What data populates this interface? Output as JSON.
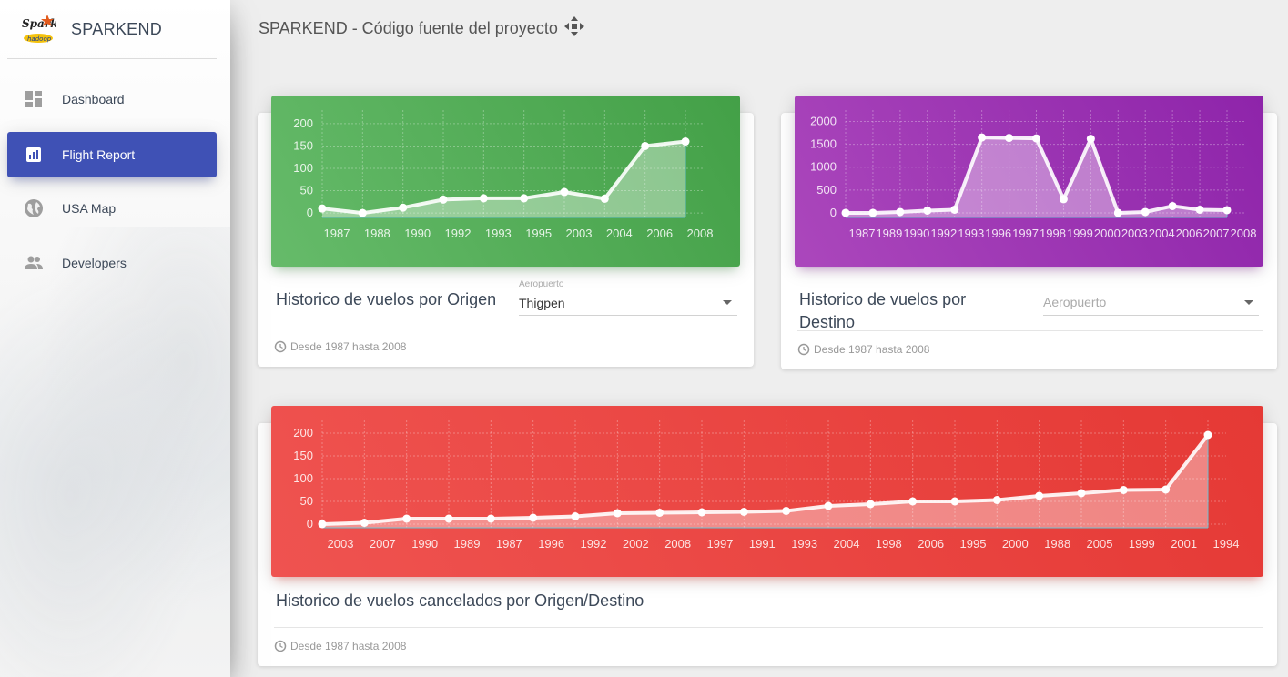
{
  "brand": {
    "title": "SPARKEND",
    "logo_text": "Spark"
  },
  "sidebar": {
    "items": [
      {
        "label": "Dashboard",
        "icon": "dashboard-icon",
        "active": false
      },
      {
        "label": "Flight Report",
        "icon": "bar-chart-icon",
        "active": true
      },
      {
        "label": "USA Map",
        "icon": "globe-icon",
        "active": false
      },
      {
        "label": "Developers",
        "icon": "people-icon",
        "active": false
      }
    ]
  },
  "topbar": {
    "title": "SPARKEND - Código fuente del proyecto"
  },
  "colors": {
    "accent": "#3f51b5",
    "green": "#4caf50",
    "purple": "#9c27b0",
    "red": "#f44336"
  },
  "card_origin": {
    "title": "Historico de vuelos por Origen",
    "select_label": "Aeropuerto",
    "select_value": "Thigpen",
    "footer": "Desde 1987 hasta 2008"
  },
  "card_dest": {
    "title": "Historico de vuelos por Destino",
    "select_placeholder": "Aeropuerto",
    "footer": "Desde 1987 hasta 2008"
  },
  "card_cancel": {
    "title": "Historico de vuelos cancelados por Origen/Destino",
    "footer": "Desde 1987 hasta 2008"
  },
  "chart_data": [
    {
      "type": "line",
      "title": "Historico de vuelos por Origen",
      "x": [
        "1987",
        "1988",
        "1990",
        "1992",
        "1993",
        "1995",
        "2003",
        "2004",
        "2006",
        "2008"
      ],
      "values": [
        10,
        0,
        12,
        30,
        33,
        33,
        47,
        32,
        150,
        160
      ],
      "yticks": [
        0,
        50,
        100,
        150,
        200
      ],
      "ylim": [
        -10,
        210
      ],
      "grid": true
    },
    {
      "type": "line",
      "title": "Historico de vuelos por Destino",
      "x": [
        "1987",
        "1989",
        "1990",
        "1992",
        "1993",
        "1996",
        "1997",
        "1998",
        "1999",
        "2000",
        "2003",
        "2004",
        "2006",
        "2007",
        "2008"
      ],
      "values": [
        0,
        0,
        20,
        50,
        70,
        1650,
        1640,
        1630,
        300,
        1620,
        0,
        20,
        150,
        70,
        60
      ],
      "yticks": [
        0,
        500,
        1000,
        1500,
        2000
      ],
      "ylim": [
        -100,
        2050
      ],
      "grid": true
    },
    {
      "type": "line",
      "title": "Historico de vuelos cancelados por Origen/Destino",
      "x": [
        "2003",
        "2007",
        "1990",
        "1989",
        "1987",
        "1996",
        "1992",
        "2002",
        "2008",
        "1997",
        "1991",
        "1993",
        "2004",
        "1998",
        "2006",
        "1995",
        "2000",
        "1988",
        "2005",
        "1999",
        "2001",
        "1994"
      ],
      "values": [
        0,
        3,
        12,
        12,
        12,
        14,
        17,
        24,
        25,
        26,
        27,
        29,
        40,
        44,
        50,
        50,
        53,
        62,
        68,
        75,
        76,
        196
      ],
      "yticks": [
        0,
        50,
        100,
        150,
        200
      ],
      "ylim": [
        -8,
        208
      ],
      "grid": true
    }
  ]
}
